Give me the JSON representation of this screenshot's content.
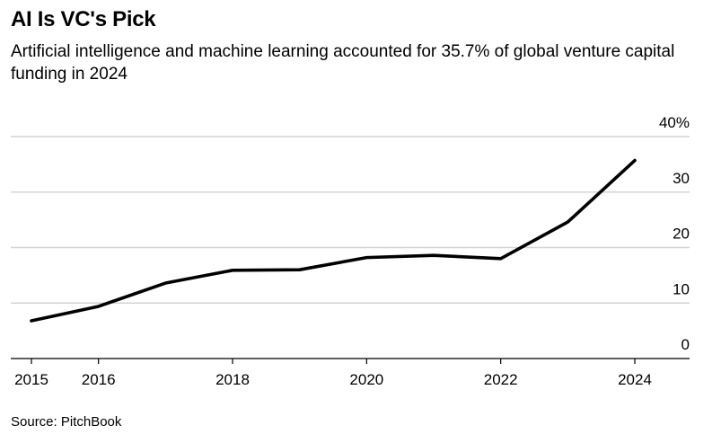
{
  "chart_data": {
    "type": "line",
    "title": "AI Is VC's Pick",
    "subtitle": "Artificial intelligence and machine learning accounted for 35.7% of global venture capital funding in 2024",
    "source": "Source: PitchBook",
    "x": [
      2015,
      2016,
      2017,
      2018,
      2019,
      2020,
      2021,
      2022,
      2023,
      2024
    ],
    "x_tick_labels": [
      "2015",
      "2016",
      "2018",
      "2020",
      "2022",
      "2024"
    ],
    "y_tick_labels": [
      "0",
      "10",
      "20",
      "30",
      "40%"
    ],
    "y_ticks": [
      0,
      10,
      20,
      30,
      40
    ],
    "ylim": [
      0,
      40
    ],
    "series": [
      {
        "values": [
          6.8,
          9.4,
          13.6,
          15.9,
          16.0,
          18.2,
          18.6,
          18.0,
          24.6,
          35.7
        ]
      }
    ],
    "grid": true,
    "y_axis_side": "right"
  }
}
